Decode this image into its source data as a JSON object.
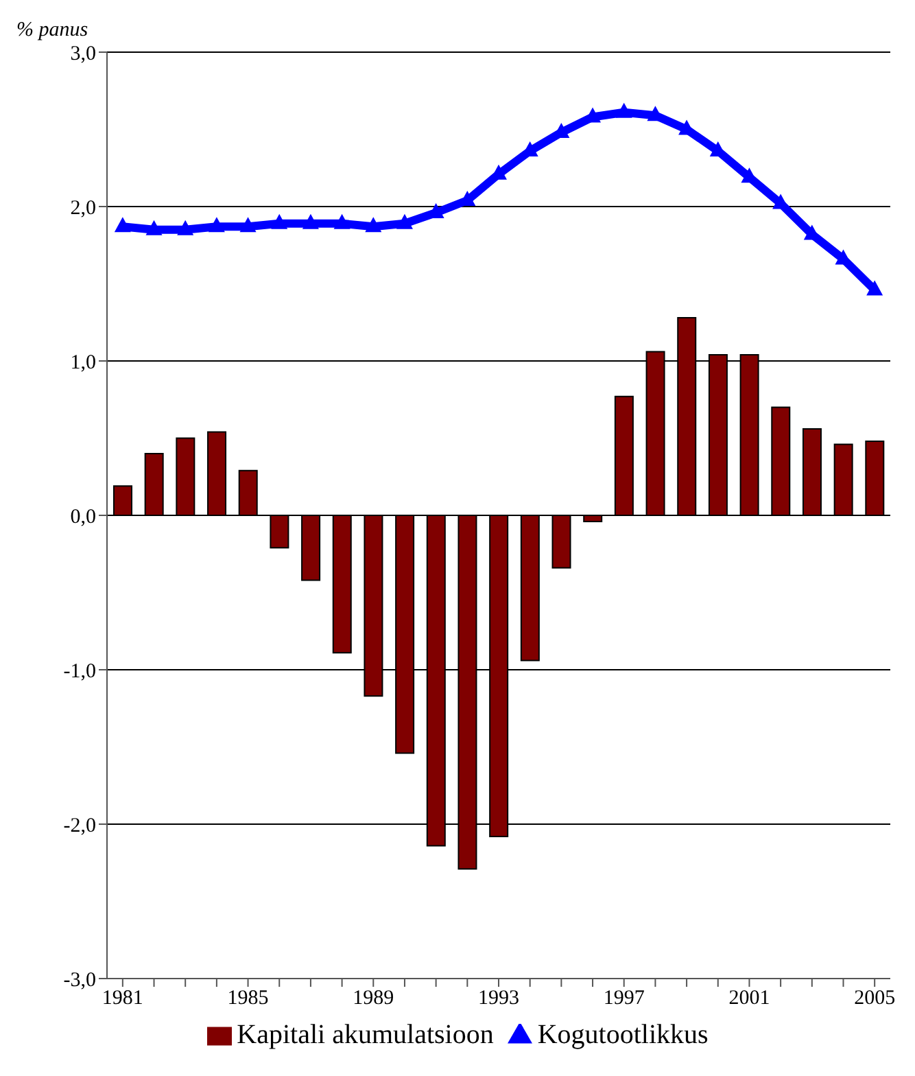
{
  "chart_data": {
    "type": "bar",
    "ylabel": "% panus",
    "categories": [
      "1981",
      null,
      null,
      null,
      "1985",
      null,
      null,
      null,
      "1989",
      null,
      null,
      null,
      "1993",
      null,
      null,
      null,
      "1997",
      null,
      null,
      null,
      "2001",
      null,
      null,
      null,
      "2005"
    ],
    "series": [
      {
        "name": "Kapitali akumulatsioon",
        "color": "#800000",
        "values": [
          0.19,
          0.4,
          0.5,
          0.54,
          0.29,
          -0.21,
          -0.42,
          -0.89,
          -1.17,
          -1.54,
          -2.14,
          -2.29,
          -2.08,
          -0.94,
          -0.34,
          -0.04,
          0.77,
          1.06,
          1.28,
          1.04,
          1.04,
          0.7,
          0.56,
          0.46,
          0.48
        ]
      },
      {
        "name": "Kogutootlikkus",
        "type": "line",
        "color": "#0000ff",
        "marker": "triangle",
        "values": [
          1.87,
          1.85,
          1.85,
          1.87,
          1.87,
          1.89,
          1.89,
          1.89,
          1.87,
          1.89,
          1.96,
          2.04,
          2.21,
          2.36,
          2.48,
          2.58,
          2.61,
          2.59,
          2.5,
          2.36,
          2.19,
          2.02,
          1.82,
          1.66,
          1.46
        ]
      }
    ],
    "ylim": [
      -3,
      3
    ],
    "yticks": [
      {
        "value": -3,
        "label": "-3,0"
      },
      {
        "value": -2,
        "label": "-2,0"
      },
      {
        "value": -1,
        "label": "-1,0"
      },
      {
        "value": 0,
        "label": "0,0"
      },
      {
        "value": 1,
        "label": "1,0"
      },
      {
        "value": 2,
        "label": "2,0"
      },
      {
        "value": 3,
        "label": "3,0"
      }
    ],
    "grid": "y",
    "legend": "bottom"
  }
}
